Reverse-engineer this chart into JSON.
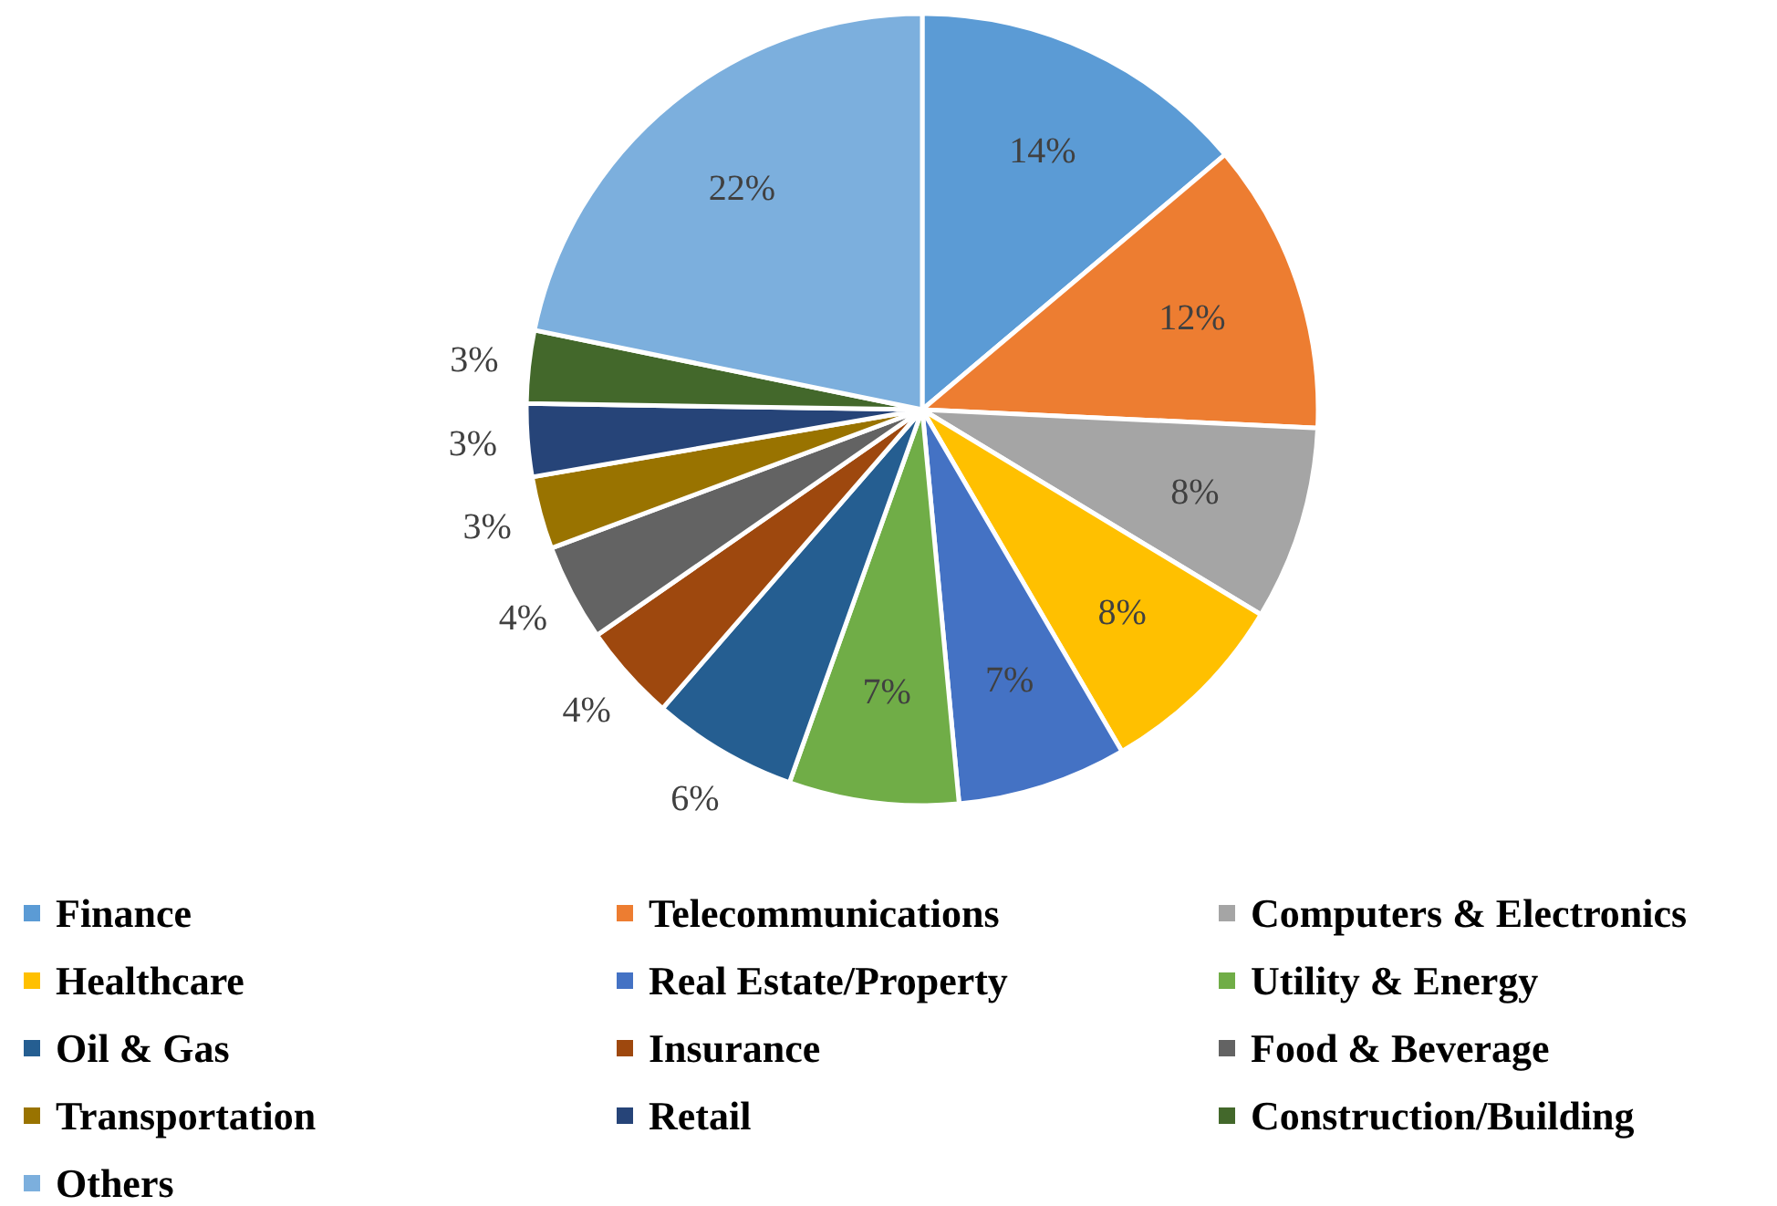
{
  "chart_data": {
    "type": "pie",
    "categories": [
      "Finance",
      "Telecommunications",
      "Computers & Electronics",
      "Healthcare",
      "Real Estate/Property",
      "Utility & Energy",
      "Oil & Gas",
      "Insurance",
      "Food & Beverage",
      "Transportation",
      "Retail",
      "Construction/Building",
      "Others"
    ],
    "values": [
      14,
      12,
      8,
      8,
      7,
      7,
      6,
      4,
      4,
      3,
      3,
      3,
      22
    ],
    "colors": [
      "#5b9bd5",
      "#ed7d31",
      "#a5a5a5",
      "#ffc000",
      "#4472c4",
      "#70ad47",
      "#255e91",
      "#9e480e",
      "#636363",
      "#997300",
      "#264478",
      "#43682b",
      "#7cafdd"
    ],
    "value_labels": [
      "14%",
      "12%",
      "8%",
      "8%",
      "7%",
      "7%",
      "6%",
      "4%",
      "4%",
      "3%",
      "3%",
      "3%",
      "22%"
    ],
    "legend": "bottom"
  }
}
